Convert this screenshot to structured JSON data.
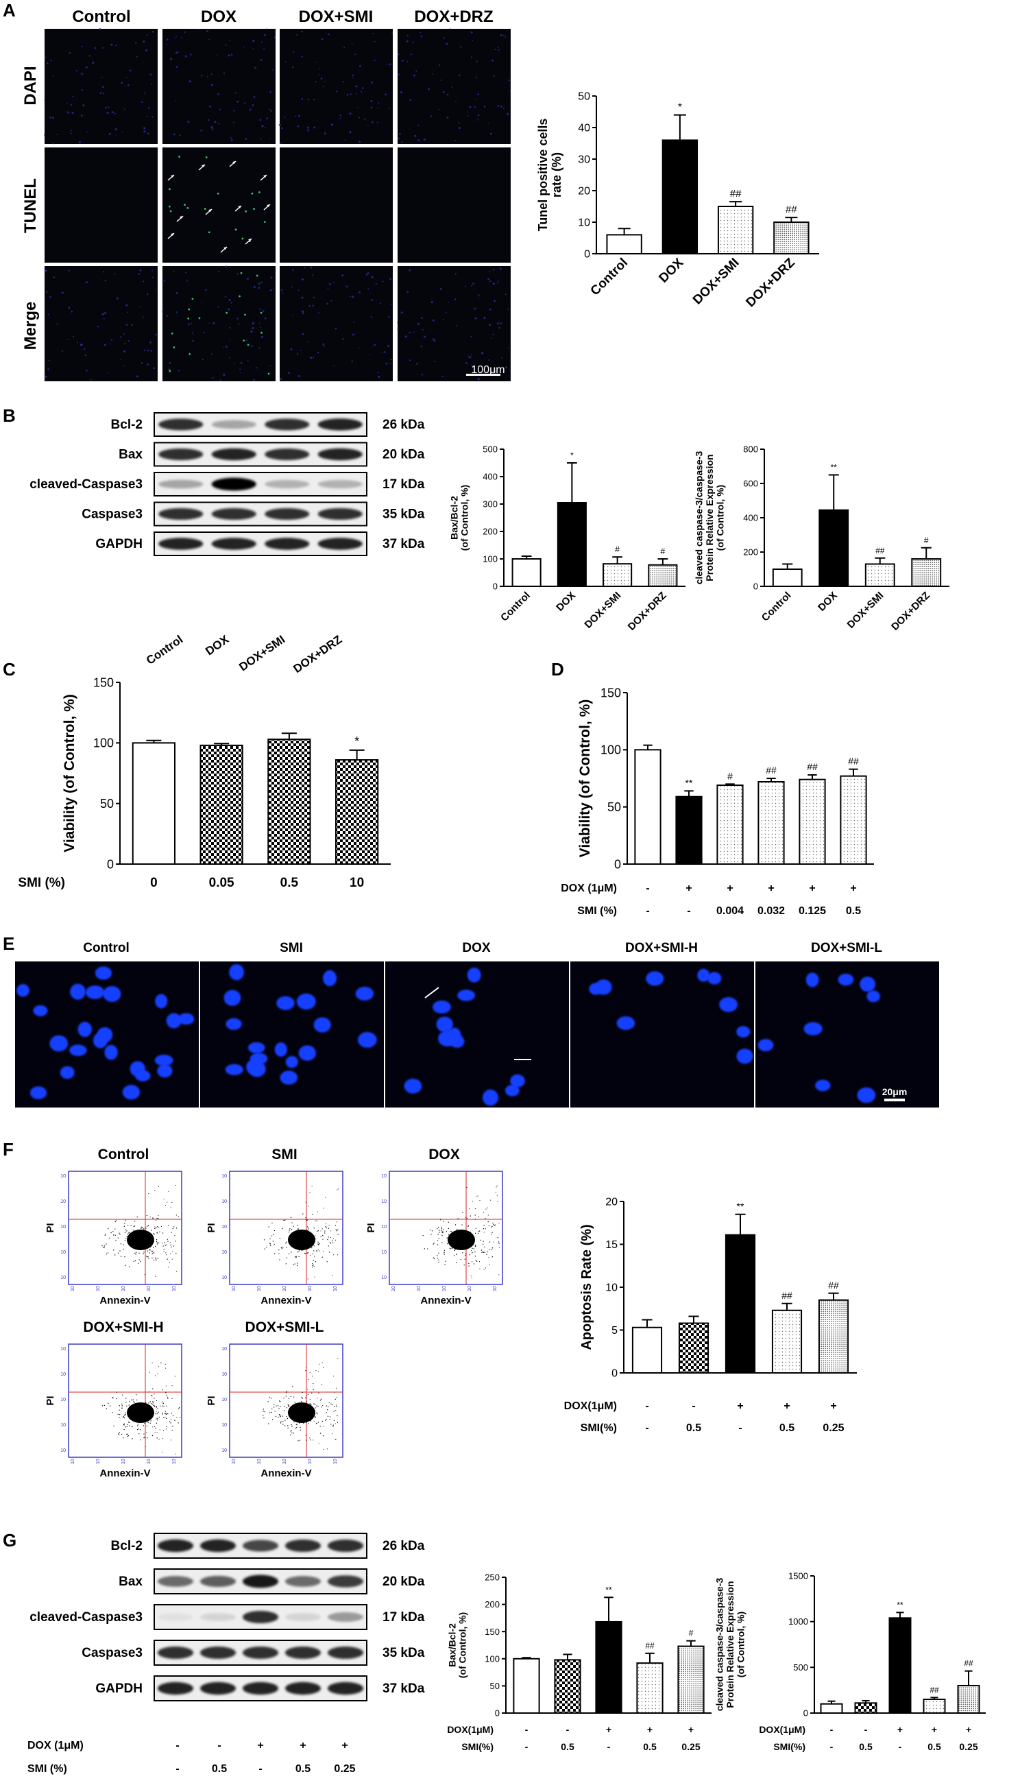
{
  "panel_letters": [
    "A",
    "B",
    "C",
    "D",
    "E",
    "F",
    "G"
  ],
  "panelA": {
    "columns": [
      "Control",
      "DOX",
      "DOX+SMI",
      "DOX+DRZ"
    ],
    "rows": [
      "DAPI",
      "TUNEL",
      "Merge"
    ],
    "scale_bar": "100μm"
  },
  "panelB": {
    "bands": [
      "Bcl-2",
      "Bax",
      "cleaved-Caspase3",
      "Caspase3",
      "GAPDH"
    ],
    "kda": [
      "26 kDa",
      "20 kDa",
      "17 kDa",
      "35 kDa",
      "37 kDa"
    ],
    "lanes": [
      "Control",
      "DOX",
      "DOX+SMI",
      "DOX+DRZ"
    ]
  },
  "panelE": {
    "columns": [
      "Control",
      "SMI",
      "DOX",
      "DOX+SMI-H",
      "DOX+SMI-L"
    ],
    "scale_bar": "20μm"
  },
  "panelF": {
    "plots": [
      "Control",
      "SMI",
      "DOX",
      "DOX+SMI-H",
      "DOX+SMI-L"
    ],
    "xlabel": "Annexin-V",
    "ylabel": "PI"
  },
  "panelG": {
    "bands": [
      "Bcl-2",
      "Bax",
      "cleaved-Caspase3",
      "Caspase3",
      "GAPDH"
    ],
    "kda": [
      "26 kDa",
      "20 kDa",
      "17 kDa",
      "35 kDa",
      "37 kDa"
    ],
    "dox_label": "DOX (1μM)",
    "smi_label": "SMI (%)",
    "dox": [
      "-",
      "-",
      "+",
      "+",
      "+"
    ],
    "smi": [
      "-",
      "0.5",
      "-",
      "0.5",
      "0.25"
    ]
  },
  "chart_data": [
    {
      "id": "A",
      "type": "bar",
      "categories": [
        "Control",
        "DOX",
        "DOX+SMI",
        "DOX+DRZ"
      ],
      "values": [
        6,
        36,
        15,
        10
      ],
      "errors": [
        2,
        8,
        1.5,
        1.5
      ],
      "sig": [
        "",
        "*",
        "##",
        "##"
      ],
      "ylabel": "Tunel positive cells rate (%)",
      "ylim": [
        0,
        50
      ],
      "yticks": [
        0,
        10,
        20,
        30,
        40,
        50
      ],
      "fills": [
        "white",
        "black",
        "dots-light",
        "dots-dense"
      ]
    },
    {
      "id": "B1",
      "type": "bar",
      "categories": [
        "Control",
        "DOX",
        "DOX+SMI",
        "DOX+DRZ"
      ],
      "values": [
        100,
        305,
        82,
        78
      ],
      "errors": [
        10,
        145,
        25,
        22
      ],
      "sig": [
        "",
        "*",
        "#",
        "#"
      ],
      "ylabel": "Bax/Bcl-2 (of Control, %)",
      "ylim": [
        0,
        500
      ],
      "yticks": [
        0,
        100,
        200,
        300,
        400,
        500
      ],
      "fills": [
        "white",
        "black",
        "dots-light",
        "dots-dense"
      ]
    },
    {
      "id": "B2",
      "type": "bar",
      "categories": [
        "Control",
        "DOX",
        "DOX+SMI",
        "DOX+DRZ"
      ],
      "values": [
        100,
        445,
        130,
        160
      ],
      "errors": [
        30,
        205,
        35,
        65
      ],
      "sig": [
        "",
        "**",
        "##",
        "#"
      ],
      "ylabel": "cleaved caspase-3/caspase-3 Protein Relative Expression (of Control, %)",
      "ylim": [
        0,
        800
      ],
      "yticks": [
        0,
        200,
        400,
        600,
        800
      ],
      "fills": [
        "white",
        "black",
        "dots-light",
        "dots-dense"
      ]
    },
    {
      "id": "C",
      "type": "bar",
      "categories": [
        "0",
        "0.05",
        "0.5",
        "10"
      ],
      "values": [
        100,
        98,
        103,
        86
      ],
      "errors": [
        2,
        1.5,
        5,
        8
      ],
      "sig": [
        "",
        "",
        "",
        "*"
      ],
      "ylabel": "Viability (of Control, %)",
      "row_labels": [
        "SMI (%)"
      ],
      "ylim": [
        0,
        150
      ],
      "yticks": [
        0,
        50,
        100,
        150
      ],
      "fills": [
        "white",
        "checker",
        "checker",
        "checker"
      ]
    },
    {
      "id": "D",
      "type": "bar",
      "categories": [
        "1",
        "2",
        "3",
        "4",
        "5",
        "6"
      ],
      "values": [
        100,
        59,
        69,
        72,
        74,
        77
      ],
      "errors": [
        4,
        5,
        1,
        3,
        4,
        6
      ],
      "sig": [
        "",
        "**",
        "#",
        "##",
        "##",
        "##"
      ],
      "ylabel": "Viability (of Control, %)",
      "ylim": [
        0,
        150
      ],
      "yticks": [
        0,
        50,
        100,
        150
      ],
      "row_labels": [
        "DOX (1μM)",
        "SMI (%)"
      ],
      "rows": [
        [
          "-",
          "+",
          "+",
          "+",
          "+",
          "+"
        ],
        [
          "-",
          "-",
          "0.004",
          "0.032",
          "0.125",
          "0.5"
        ]
      ],
      "fills": [
        "white",
        "black",
        "dots-light",
        "dots-light",
        "dots-light",
        "dots-light"
      ]
    },
    {
      "id": "F",
      "type": "bar",
      "categories": [
        "1",
        "2",
        "3",
        "4",
        "5"
      ],
      "values": [
        5.3,
        5.8,
        16.1,
        7.3,
        8.5
      ],
      "errors": [
        0.9,
        0.8,
        2.4,
        0.8,
        0.8
      ],
      "sig": [
        "",
        "",
        "**",
        "##",
        "##"
      ],
      "ylabel": "Apoptosis Rate (%)",
      "ylim": [
        0,
        20
      ],
      "yticks": [
        0,
        5,
        10,
        15,
        20
      ],
      "row_labels": [
        "DOX(1μM)",
        "SMI(%)"
      ],
      "rows": [
        [
          "-",
          "-",
          "+",
          "+",
          "+"
        ],
        [
          "-",
          "0.5",
          "-",
          "0.5",
          "0.25"
        ]
      ],
      "fills": [
        "white",
        "checker",
        "black",
        "dots-light",
        "dots-dense"
      ]
    },
    {
      "id": "G1",
      "type": "bar",
      "categories": [
        "1",
        "2",
        "3",
        "4",
        "5"
      ],
      "values": [
        100,
        98,
        168,
        92,
        123
      ],
      "errors": [
        2,
        10,
        45,
        18,
        10
      ],
      "sig": [
        "",
        "",
        "**",
        "##",
        "#"
      ],
      "ylabel": "Bax/Bcl-2 (of Control, %)",
      "ylim": [
        0,
        250
      ],
      "yticks": [
        0,
        50,
        100,
        150,
        200,
        250
      ],
      "row_labels": [
        "DOX(1μM)",
        "SMI(%)"
      ],
      "rows": [
        [
          "-",
          "-",
          "+",
          "+",
          "+"
        ],
        [
          "-",
          "0.5",
          "-",
          "0.5",
          "0.25"
        ]
      ],
      "fills": [
        "white",
        "checker",
        "black",
        "dots-light",
        "dots-dense"
      ]
    },
    {
      "id": "G2",
      "type": "bar",
      "categories": [
        "1",
        "2",
        "3",
        "4",
        "5"
      ],
      "values": [
        100,
        110,
        1040,
        150,
        300
      ],
      "errors": [
        30,
        25,
        60,
        20,
        160
      ],
      "sig": [
        "",
        "",
        "**",
        "##",
        "##"
      ],
      "ylabel": "cleaved caspase-3/caspase-3 Protein Relative Expression (of Control, %)",
      "ylim": [
        0,
        1500
      ],
      "yticks": [
        0,
        500,
        1000,
        1500
      ],
      "row_labels": [
        "DOX(1μM)",
        "SMI(%)"
      ],
      "rows": [
        [
          "-",
          "-",
          "+",
          "+",
          "+"
        ],
        [
          "-",
          "0.5",
          "-",
          "0.5",
          "0.25"
        ]
      ],
      "fills": [
        "white",
        "checker",
        "black",
        "dots-light",
        "dots-dense"
      ]
    }
  ]
}
